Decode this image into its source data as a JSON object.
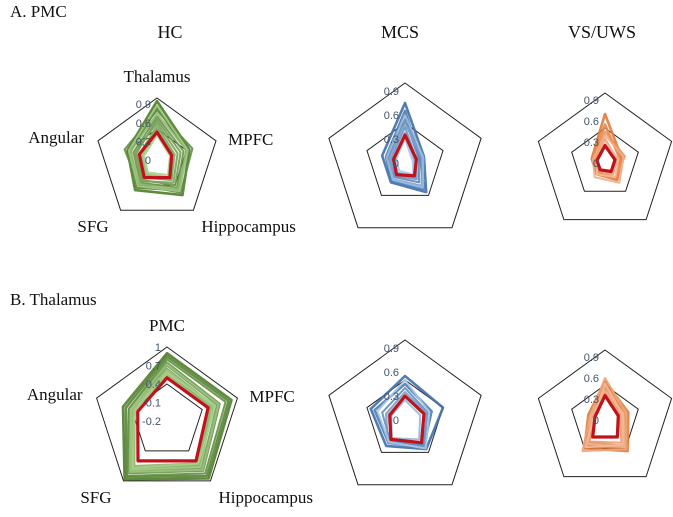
{
  "figure": {
    "panel_a_label": "A. PMC",
    "panel_b_label": "B. Thalamus",
    "groups": [
      "HC",
      "MCS",
      "VS/UWS"
    ]
  },
  "colors": {
    "HC_dark": "#4e7d2b",
    "HC_light": "#a9cf8d",
    "MCS_dark": "#3f6fa8",
    "MCS_light": "#a9c6e6",
    "VS_dark": "#e07a3a",
    "VS_light": "#f3b99a",
    "mean": "#c0121a",
    "grid": "#222222"
  },
  "chart_data": [
    {
      "type": "radar",
      "panel": "A. PMC",
      "group": "HC",
      "axes": [
        "Thalamus",
        "MPFC",
        "Hippocampus",
        "SFG",
        "Angular"
      ],
      "ticks": [
        "0",
        "0.3",
        "0.6",
        "0.9"
      ],
      "rlim": [
        0,
        1
      ],
      "mean": [
        0.45,
        0.25,
        0.35,
        0.35,
        0.3
      ],
      "subjects": [
        [
          0.95,
          0.55,
          0.7,
          0.6,
          0.5
        ],
        [
          0.85,
          0.5,
          0.6,
          0.55,
          0.45
        ],
        [
          0.8,
          0.6,
          0.65,
          0.5,
          0.55
        ],
        [
          0.7,
          0.45,
          0.55,
          0.45,
          0.4
        ],
        [
          0.65,
          0.4,
          0.5,
          0.4,
          0.35
        ],
        [
          0.6,
          0.35,
          0.45,
          0.42,
          0.38
        ],
        [
          0.55,
          0.3,
          0.4,
          0.35,
          0.3
        ],
        [
          0.5,
          0.28,
          0.38,
          0.3,
          0.28
        ],
        [
          0.75,
          0.5,
          0.58,
          0.48,
          0.45
        ],
        [
          0.45,
          0.25,
          0.35,
          0.28,
          0.25
        ],
        [
          0.88,
          0.52,
          0.62,
          0.52,
          0.48
        ],
        [
          0.4,
          0.22,
          0.3,
          0.25,
          0.22
        ]
      ]
    },
    {
      "type": "radar",
      "panel": "A. PMC",
      "group": "MCS",
      "axes": [
        "Thalamus",
        "MPFC",
        "Hippocampus",
        "SFG",
        "Angular"
      ],
      "ticks": [
        "0",
        "0.3",
        "0.6",
        "0.9"
      ],
      "rlim": [
        0,
        1
      ],
      "mean": [
        0.35,
        0.15,
        0.2,
        0.18,
        0.15
      ],
      "subjects": [
        [
          0.75,
          0.25,
          0.45,
          0.3,
          0.3
        ],
        [
          0.65,
          0.2,
          0.4,
          0.28,
          0.25
        ],
        [
          0.55,
          0.18,
          0.3,
          0.22,
          0.22
        ],
        [
          0.45,
          0.15,
          0.25,
          0.2,
          0.18
        ],
        [
          0.5,
          0.22,
          0.35,
          0.25,
          0.2
        ],
        [
          0.38,
          0.12,
          0.22,
          0.15,
          0.15
        ],
        [
          0.6,
          0.24,
          0.38,
          0.26,
          0.24
        ],
        [
          0.3,
          0.1,
          0.18,
          0.12,
          0.12
        ]
      ]
    },
    {
      "type": "radar",
      "panel": "A. PMC",
      "group": "VS/UWS",
      "axes": [
        "Thalamus",
        "MPFC",
        "Hippocampus",
        "SFG",
        "Angular"
      ],
      "ticks": [
        "0",
        "0.3",
        "0.6",
        "0.9"
      ],
      "rlim": [
        0,
        1
      ],
      "mean": [
        0.25,
        0.15,
        0.15,
        0.12,
        0.12
      ],
      "subjects": [
        [
          0.7,
          0.25,
          0.3,
          0.2,
          0.2
        ],
        [
          0.55,
          0.22,
          0.28,
          0.18,
          0.18
        ],
        [
          0.45,
          0.3,
          0.25,
          0.15,
          0.15
        ],
        [
          0.35,
          0.18,
          0.2,
          0.12,
          0.14
        ],
        [
          0.4,
          0.28,
          0.35,
          0.25,
          0.18
        ],
        [
          0.3,
          0.2,
          0.25,
          0.2,
          0.12
        ]
      ]
    },
    {
      "type": "radar",
      "panel": "B. Thalamus",
      "group": "HC",
      "axes": [
        "PMC",
        "MPFC",
        "Hippocampus",
        "SFG",
        "Angular"
      ],
      "ticks": [
        "-0.2",
        "0.1",
        "0.4",
        "0.7",
        "1"
      ],
      "rlim": [
        -0.2,
        1
      ],
      "mean": [
        0.5,
        0.5,
        0.6,
        0.6,
        0.3
      ],
      "subjects": [
        [
          0.9,
          0.9,
          0.95,
          0.97,
          0.55
        ],
        [
          0.85,
          0.85,
          0.9,
          0.92,
          0.5
        ],
        [
          0.8,
          0.8,
          0.85,
          0.9,
          0.45
        ],
        [
          0.75,
          0.7,
          0.8,
          0.85,
          0.45
        ],
        [
          0.7,
          0.65,
          0.75,
          0.8,
          0.4
        ],
        [
          0.65,
          0.6,
          0.7,
          0.75,
          0.38
        ],
        [
          0.6,
          0.55,
          0.68,
          0.72,
          0.35
        ],
        [
          0.55,
          0.55,
          0.65,
          0.7,
          0.35
        ],
        [
          0.72,
          0.68,
          0.78,
          0.82,
          0.42
        ],
        [
          0.62,
          0.58,
          0.72,
          0.78,
          0.4
        ],
        [
          0.58,
          0.62,
          0.66,
          0.74,
          0.36
        ]
      ]
    },
    {
      "type": "radar",
      "panel": "B. Thalamus",
      "group": "MCS",
      "axes": [
        "PMC",
        "MPFC",
        "Hippocampus",
        "SFG",
        "Angular"
      ],
      "ticks": [
        "0",
        "0.3",
        "0.6",
        "0.9"
      ],
      "rlim": [
        0,
        1
      ],
      "mean": [
        0.3,
        0.25,
        0.35,
        0.3,
        0.2
      ],
      "subjects": [
        [
          0.55,
          0.5,
          0.45,
          0.4,
          0.45
        ],
        [
          0.45,
          0.35,
          0.4,
          0.35,
          0.4
        ],
        [
          0.4,
          0.3,
          0.38,
          0.32,
          0.3
        ],
        [
          0.35,
          0.28,
          0.42,
          0.36,
          0.25
        ],
        [
          0.3,
          0.25,
          0.35,
          0.3,
          0.22
        ],
        [
          0.25,
          0.2,
          0.3,
          0.28,
          0.18
        ],
        [
          0.5,
          0.32,
          0.44,
          0.34,
          0.36
        ]
      ]
    },
    {
      "type": "radar",
      "panel": "B. Thalamus",
      "group": "VS/UWS",
      "axes": [
        "PMC",
        "MPFC",
        "Hippocampus",
        "SFG",
        "Angular"
      ],
      "ticks": [
        "0",
        "0.3",
        "0.6",
        "0.9"
      ],
      "rlim": [
        0,
        1
      ],
      "mean": [
        0.35,
        0.2,
        0.3,
        0.3,
        0.15
      ],
      "subjects": [
        [
          0.55,
          0.35,
          0.55,
          0.5,
          0.25
        ],
        [
          0.5,
          0.3,
          0.5,
          0.45,
          0.2
        ],
        [
          0.45,
          0.25,
          0.45,
          0.4,
          0.18
        ],
        [
          0.4,
          0.22,
          0.4,
          0.38,
          0.15
        ],
        [
          0.6,
          0.32,
          0.52,
          0.55,
          0.22
        ],
        [
          0.42,
          0.28,
          0.48,
          0.42,
          0.2
        ],
        [
          0.52,
          0.26,
          0.44,
          0.48,
          0.16
        ]
      ]
    }
  ]
}
